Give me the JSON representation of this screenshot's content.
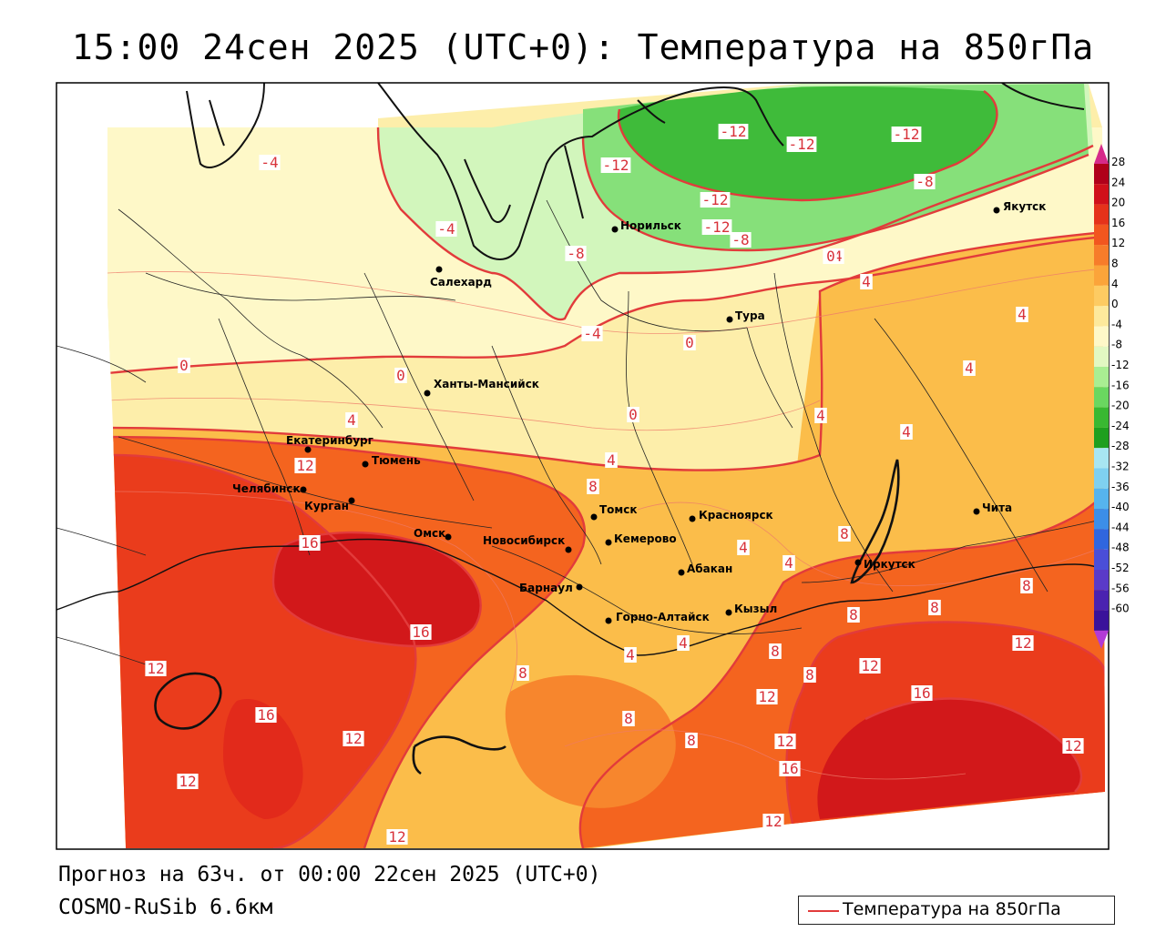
{
  "title": "15:00 24сен 2025 (UTC+0): Температура на 850гПа",
  "footer": {
    "forecast": "Прогноз на 63ч. от 00:00 22сен 2025 (UTC+0)",
    "model": "COSMO-RuSib 6.6км"
  },
  "legend": {
    "label": "Температура на 850гПа",
    "line_color": "#e23b3b"
  },
  "colorbar": {
    "ticks": [
      "28",
      "24",
      "20",
      "16",
      "12",
      "8",
      "4",
      "0",
      "-4",
      "-8",
      "-12",
      "-16",
      "-20",
      "-24",
      "-28",
      "-32",
      "-36",
      "-40",
      "-44",
      "-48",
      "-52",
      "-56",
      "-60"
    ],
    "colors": [
      "#b0001a",
      "#d0101a",
      "#e5321a",
      "#f2561f",
      "#f77c2a",
      "#fba43a",
      "#fdcb62",
      "#fde99c",
      "#fef8c8",
      "#e2f8c2",
      "#a9ee92",
      "#6ad760",
      "#39b832",
      "#1f9f1f",
      "#a8e6f2",
      "#7fd0f0",
      "#56b4ee",
      "#3c8ee8",
      "#3066de",
      "#4a4ed8",
      "#5a3ac8",
      "#4a22b0",
      "#3a129a"
    ]
  },
  "cities": [
    {
      "name": "Салехард"
    },
    {
      "name": "Норильск"
    },
    {
      "name": "Якутск"
    },
    {
      "name": "Тура"
    },
    {
      "name": "Ханты-Мансийск"
    },
    {
      "name": "Екатеринбург"
    },
    {
      "name": "Тюмень"
    },
    {
      "name": "Челябинск"
    },
    {
      "name": "Курган"
    },
    {
      "name": "Омск"
    },
    {
      "name": "Новосибирск"
    },
    {
      "name": "Томск"
    },
    {
      "name": "Кемерово"
    },
    {
      "name": "Красноярск"
    },
    {
      "name": "Барнаул"
    },
    {
      "name": "Абакан"
    },
    {
      "name": "Горно-Алтайск"
    },
    {
      "name": "Кызыл"
    },
    {
      "name": "Иркутск"
    },
    {
      "name": "Чита"
    }
  ],
  "isotherm_labels": [
    "-12",
    "-12",
    "-12",
    "-12",
    "-12",
    "-12",
    "-8",
    "-8",
    "-8",
    "-4",
    "-4",
    "-4",
    "-4",
    "0",
    "0",
    "0",
    "0",
    "0",
    "4",
    "4",
    "4",
    "4",
    "4",
    "4",
    "4",
    "4",
    "4",
    "4",
    "4",
    "8",
    "8",
    "8",
    "8",
    "8",
    "8",
    "8",
    "8",
    "8",
    "8",
    "12",
    "12",
    "12",
    "12",
    "12",
    "12",
    "12",
    "12",
    "12",
    "12",
    "12",
    "16",
    "16",
    "16",
    "16",
    "16"
  ]
}
